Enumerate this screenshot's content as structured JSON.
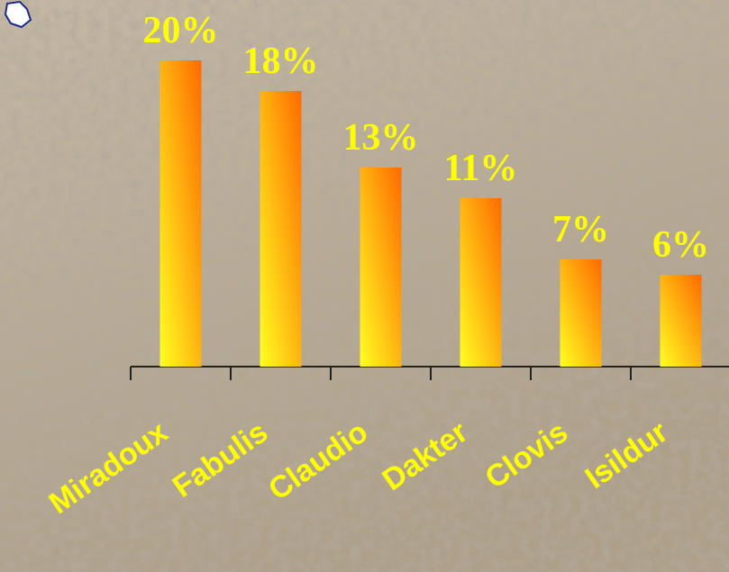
{
  "chart_data": {
    "type": "bar",
    "categories": [
      "Miradoux",
      "Fabulis",
      "Claudio",
      "Dakter",
      "Clovis",
      "Isildur"
    ],
    "values": [
      20,
      18,
      13,
      11,
      7,
      6
    ],
    "value_labels": [
      "20%",
      "18%",
      "13%",
      "11%",
      "7%",
      "6%"
    ],
    "gradient": [
      "#ffff22",
      "#ff6a00"
    ],
    "label_color": "#ffff00"
  }
}
